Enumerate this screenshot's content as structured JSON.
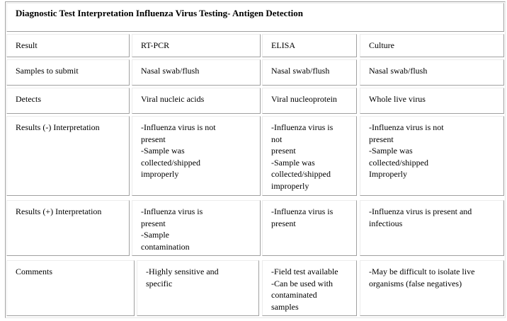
{
  "title": "Diagnostic Test Interpretation Influenza Virus Testing- Antigen Detection",
  "rows": [
    {
      "label": "Result",
      "cells": [
        "RT-PCR",
        "ELISA",
        "Culture"
      ]
    },
    {
      "label": "Samples to submit",
      "cells": [
        "Nasal swab/flush",
        "Nasal swab/flush",
        "Nasal swab/flush"
      ]
    },
    {
      "label": "Detects",
      "cells": [
        "Viral nucleic acids",
        "Viral nucleoprotein",
        "Whole live virus"
      ]
    },
    {
      "label": "Results (-) Interpretation",
      "cells": [
        "-Influenza virus is not\npresent\n-Sample was\ncollected/shipped\nimproperly",
        "-Influenza virus is\nnot\npresent\n-Sample was\ncollected/shipped\nimproperly",
        "-Influenza virus is not\npresent\n-Sample was\ncollected/shipped\nImproperly"
      ]
    },
    {
      "label": "Results (+) Interpretation",
      "cells": [
        "-Influenza virus is\npresent\n-Sample\ncontamination",
        "-Influenza virus is\npresent",
        "-Influenza virus is present and\ninfectious"
      ]
    },
    {
      "label": "Comments",
      "cells": [
        "-Highly sensitive and\nspecific",
        "-Field test available\n-Can be used with\ncontaminated\nsamples",
        "-May be difficult to isolate live\norganisms (false negatives)"
      ]
    }
  ]
}
